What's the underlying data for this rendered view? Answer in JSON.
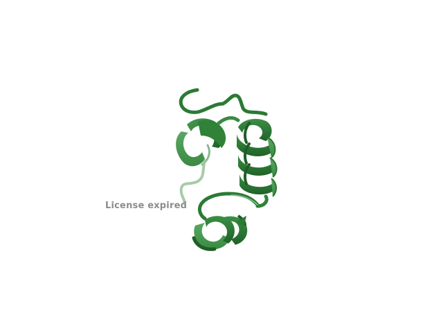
{
  "viewer": {
    "watermark_text": "License expired",
    "background_color": "#ffffff"
  },
  "structure": {
    "style": "cartoon",
    "color": "#2f7f39",
    "secondary_structure": [
      "helix",
      "helix",
      "helix"
    ]
  }
}
